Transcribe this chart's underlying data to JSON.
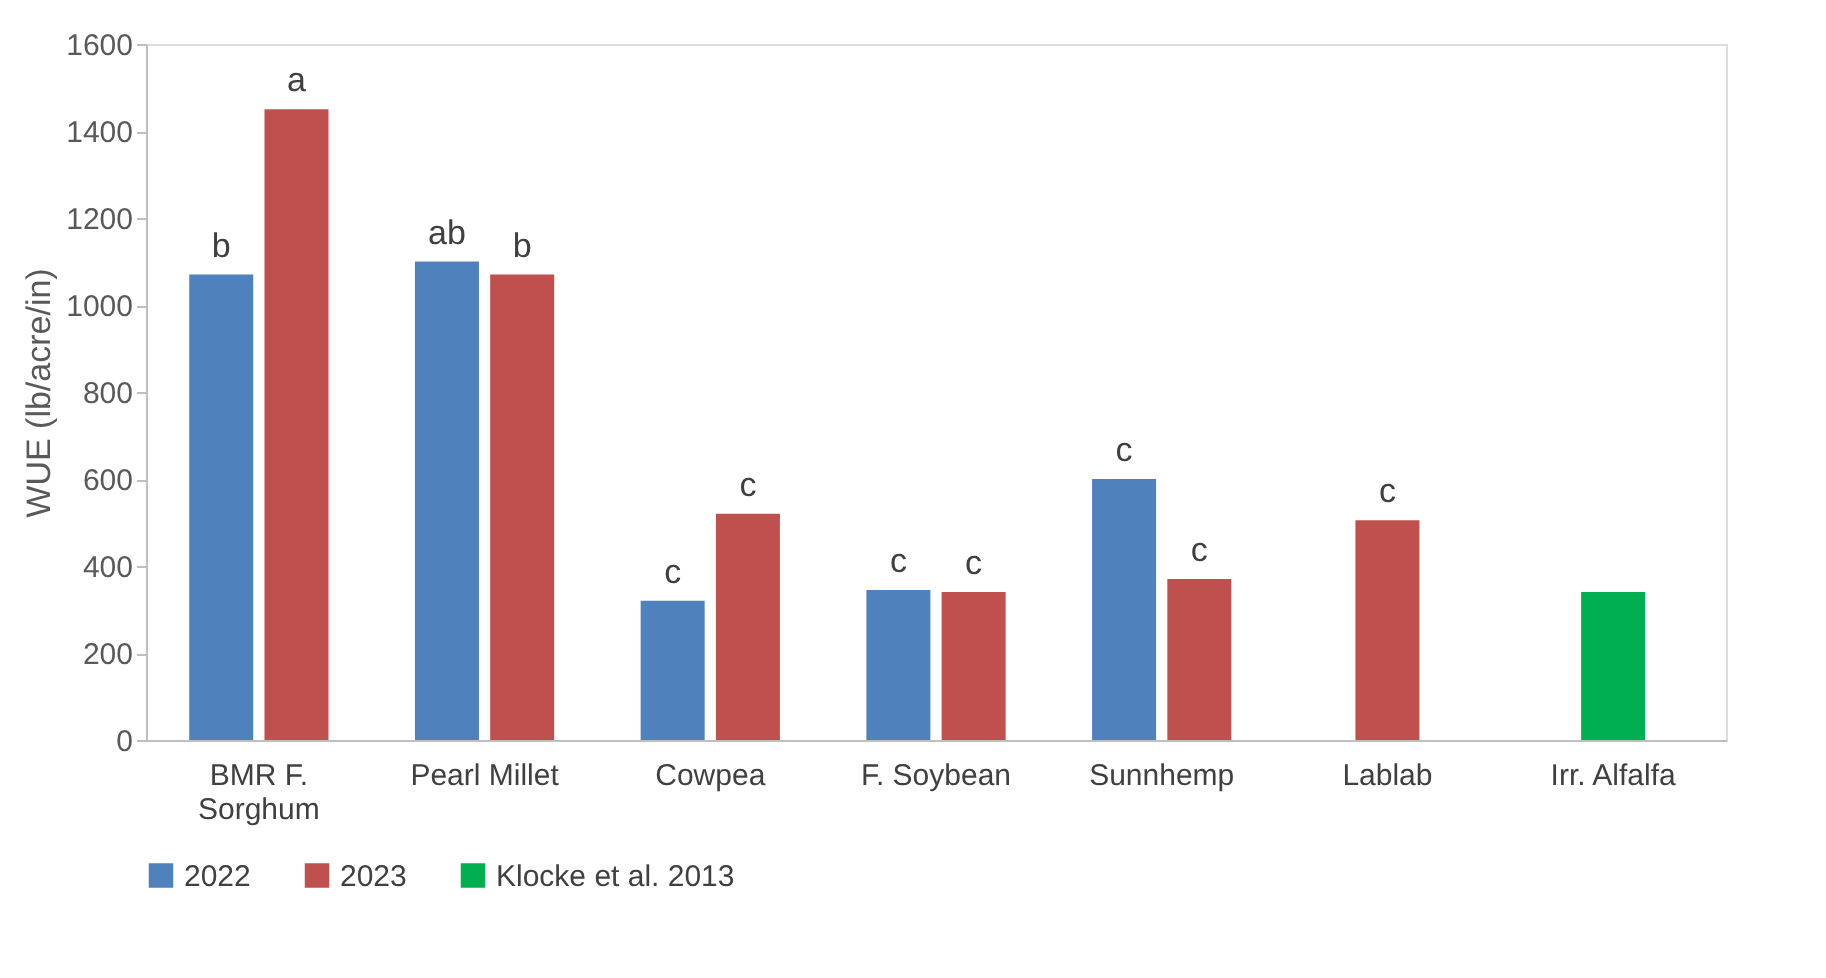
{
  "chart_data": {
    "type": "bar",
    "ylabel": "WUE (lb/acre/in)",
    "categories": [
      "BMR F. Sorghum",
      "Pearl Millet",
      "Cowpea",
      "F. Soybean",
      "Sunnhemp",
      "Lablab",
      "Irr. Alfalfa"
    ],
    "series": [
      {
        "name": "2022",
        "color": "#4f81bd",
        "values": [
          1070,
          1100,
          320,
          345,
          600,
          null,
          null
        ],
        "value_labels": [
          "b",
          "ab",
          "c",
          "c",
          "c",
          null,
          null
        ]
      },
      {
        "name": "2023",
        "color": "#c0504d",
        "values": [
          1450,
          1070,
          520,
          340,
          370,
          505,
          null
        ],
        "value_labels": [
          "a",
          "b",
          "c",
          "c",
          "c",
          "c",
          null
        ]
      },
      {
        "name": "Klocke et al. 2013",
        "color": "#00b050",
        "values": [
          null,
          null,
          null,
          null,
          null,
          null,
          340
        ],
        "value_labels": [
          null,
          null,
          null,
          null,
          null,
          null,
          null
        ]
      }
    ],
    "ylim": [
      0,
      1600
    ],
    "yticks": [
      0,
      200,
      400,
      600,
      800,
      1000,
      1200,
      1400,
      1600
    ],
    "grid": false,
    "legend": "bottom"
  }
}
